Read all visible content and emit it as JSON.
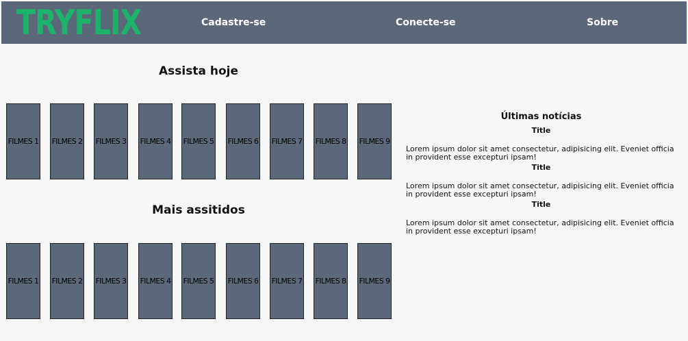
{
  "header": {
    "logo": "TRYFLIX",
    "nav": [
      "Cadastre-se",
      "Conecte-se",
      "Sobre"
    ]
  },
  "sections": [
    {
      "title": "Assista hoje",
      "films": [
        "FILMES 1",
        "FILMES 2",
        "FILMES 3",
        "FILMES 4",
        "FILMES 5",
        "FILMES 6",
        "FILMES 7",
        "FILMES 8",
        "FILMES 9"
      ]
    },
    {
      "title": "Mais assitidos",
      "films": [
        "FILMES 1",
        "FILMES 2",
        "FILMES 3",
        "FILMES 4",
        "FILMES 5",
        "FILMES 6",
        "FILMES 7",
        "FILMES 8",
        "FILMES 9"
      ]
    }
  ],
  "news": {
    "heading": "Últimas notícias",
    "items": [
      {
        "title": "Title",
        "text": "Lorem ipsum dolor sit amet consectetur, adipisicing elit. Eveniet officia in provident esse excepturi ipsam!"
      },
      {
        "title": "Title",
        "text": "Lorem ipsum dolor sit amet consectetur, adipisicing elit. Eveniet officia in provident esse excepturi ipsam!"
      },
      {
        "title": "Title",
        "text": "Lorem ipsum dolor sit amet consectetur, adipisicing elit. Eveniet officia in provident esse excepturi ipsam!"
      }
    ]
  },
  "colors": {
    "navbar": "#5b687a",
    "logo": "#1db36b",
    "background": "#f7f7f7",
    "film_card": "#5b687a"
  }
}
